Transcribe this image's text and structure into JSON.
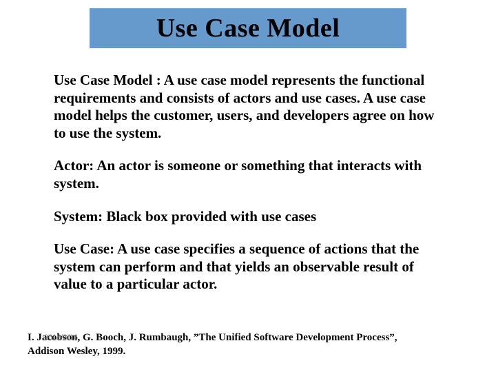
{
  "slide": {
    "title": "Use Case Model",
    "title_banner_color": "#6699cc",
    "title_fontsize": 38,
    "body_fontsize": 21,
    "text_color": "#000000",
    "background_color": "#ffffff",
    "paragraphs": [
      "Use Case Model : A use case model represents the functional requirements and consists of actors and use cases. A use case model helps the customer, users, and developers agree on how to use the system.",
      "Actor: An actor is someone or something that interacts with system.",
      "System: Black box provided with use cases",
      "Use Case: A use case specifies a sequence of actions that the system can perform and that yields an observable result of value to a particular actor."
    ],
    "citation": {
      "line1": "I. Jacobson, G. Booch, J. Rumbaugh, ”The Unified Software Development Process”,",
      "line2": "Addison Wesley, 1999.",
      "fontsize": 15,
      "overlay_date": "2018/3/16",
      "overlay_color": "#808080",
      "overlay_fontsize": 11
    }
  }
}
